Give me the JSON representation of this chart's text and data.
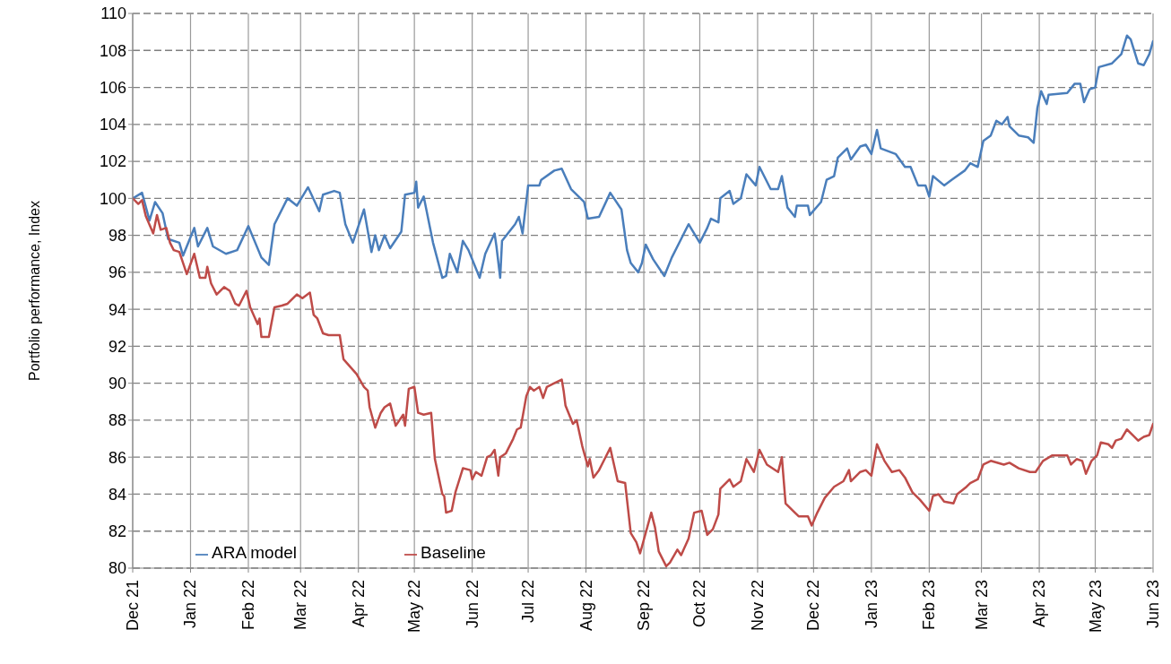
{
  "chart_data": {
    "type": "line",
    "ylabel": "Portfolio performance, Index",
    "ylim": [
      80,
      110
    ],
    "yticks": [
      80,
      82,
      84,
      86,
      88,
      90,
      92,
      94,
      96,
      98,
      100,
      102,
      104,
      106,
      108,
      110
    ],
    "xlim": [
      "2021-12-01",
      "2023-06-01"
    ],
    "xticks": [
      {
        "value": "2021-12-01",
        "label": "Dec 21"
      },
      {
        "value": "2022-01-01",
        "label": "Jan 22"
      },
      {
        "value": "2022-02-01",
        "label": "Feb 22"
      },
      {
        "value": "2022-03-01",
        "label": "Mar 22"
      },
      {
        "value": "2022-04-01",
        "label": "Apr 22"
      },
      {
        "value": "2022-05-01",
        "label": "May 22"
      },
      {
        "value": "2022-06-01",
        "label": "Jun 22"
      },
      {
        "value": "2022-07-01",
        "label": "Jul 22"
      },
      {
        "value": "2022-08-01",
        "label": "Aug 22"
      },
      {
        "value": "2022-09-01",
        "label": "Sep 22"
      },
      {
        "value": "2022-10-01",
        "label": "Oct 22"
      },
      {
        "value": "2022-11-01",
        "label": "Nov 22"
      },
      {
        "value": "2022-12-01",
        "label": "Dec 22"
      },
      {
        "value": "2023-01-01",
        "label": "Jan 23"
      },
      {
        "value": "2023-02-01",
        "label": "Feb 23"
      },
      {
        "value": "2023-03-01",
        "label": "Mar 23"
      },
      {
        "value": "2023-04-01",
        "label": "Apr 23"
      },
      {
        "value": "2023-05-01",
        "label": "May 23"
      },
      {
        "value": "2023-06-01",
        "label": "Jun 23"
      }
    ],
    "grid": true,
    "legend": "bottom left",
    "marker": "none",
    "line_style": "solid",
    "series": [
      {
        "name": "ARA model",
        "color": "#4a7ebb",
        "x": [
          "2021-12-01",
          "2021-12-06",
          "2021-12-10",
          "2021-12-13",
          "2021-12-17",
          "2021-12-20",
          "2021-12-26",
          "2021-12-28",
          "2022-01-03",
          "2022-01-05",
          "2022-01-10",
          "2022-01-13",
          "2022-01-20",
          "2022-01-26",
          "2022-02-01",
          "2022-02-08",
          "2022-02-12",
          "2022-02-15",
          "2022-02-22",
          "2022-02-27",
          "2022-03-05",
          "2022-03-11",
          "2022-03-13",
          "2022-03-19",
          "2022-03-22",
          "2022-03-25",
          "2022-03-29",
          "2022-03-31",
          "2022-04-04",
          "2022-04-08",
          "2022-04-10",
          "2022-04-12",
          "2022-04-15",
          "2022-04-18",
          "2022-04-24",
          "2022-04-26",
          "2022-05-01",
          "2022-05-02",
          "2022-05-03",
          "2022-05-06",
          "2022-05-11",
          "2022-05-16",
          "2022-05-18",
          "2022-05-20",
          "2022-05-24",
          "2022-05-27",
          "2022-05-30",
          "2022-06-05",
          "2022-06-08",
          "2022-06-13",
          "2022-06-14",
          "2022-06-16",
          "2022-06-17",
          "2022-06-24",
          "2022-06-26",
          "2022-06-28",
          "2022-07-01",
          "2022-07-07",
          "2022-07-08",
          "2022-07-15",
          "2022-07-19",
          "2022-07-24",
          "2022-07-31",
          "2022-08-02",
          "2022-08-08",
          "2022-08-14",
          "2022-08-20",
          "2022-08-23",
          "2022-08-25",
          "2022-08-29",
          "2022-08-31",
          "2022-09-02",
          "2022-09-06",
          "2022-09-12",
          "2022-09-16",
          "2022-09-21",
          "2022-09-25",
          "2022-10-01",
          "2022-10-05",
          "2022-10-07",
          "2022-10-11",
          "2022-10-12",
          "2022-10-17",
          "2022-10-19",
          "2022-10-23",
          "2022-10-26",
          "2022-10-31",
          "2022-11-02",
          "2022-11-08",
          "2022-11-12",
          "2022-11-14",
          "2022-11-17",
          "2022-11-21",
          "2022-11-22",
          "2022-11-28",
          "2022-11-29",
          "2022-12-05",
          "2022-12-08",
          "2022-12-12",
          "2022-12-14",
          "2022-12-19",
          "2022-12-21",
          "2022-12-26",
          "2022-12-29",
          "2023-01-01",
          "2023-01-04",
          "2023-01-06",
          "2023-01-14",
          "2023-01-19",
          "2023-01-22",
          "2023-01-26",
          "2023-01-30",
          "2023-02-01",
          "2023-02-03",
          "2023-02-09",
          "2023-02-13",
          "2023-02-20",
          "2023-02-23",
          "2023-02-27",
          "2023-03-02",
          "2023-03-06",
          "2023-03-09",
          "2023-03-12",
          "2023-03-15",
          "2023-03-16",
          "2023-03-21",
          "2023-03-26",
          "2023-03-29",
          "2023-03-31",
          "2023-04-02",
          "2023-04-05",
          "2023-04-06",
          "2023-04-16",
          "2023-04-20",
          "2023-04-23",
          "2023-04-25",
          "2023-04-28",
          "2023-05-01",
          "2023-05-03",
          "2023-05-10",
          "2023-05-15",
          "2023-05-18",
          "2023-05-20",
          "2023-05-24",
          "2023-05-27",
          "2023-05-30",
          "2023-06-01"
        ],
        "values": [
          100,
          100.3,
          98.8,
          99.8,
          99.2,
          97.8,
          97.6,
          96.9,
          98.4,
          97.4,
          98.4,
          97.4,
          97.0,
          97.2,
          98.5,
          96.8,
          96.4,
          98.6,
          100.0,
          99.6,
          100.6,
          99.3,
          100.2,
          100.4,
          100.3,
          98.6,
          97.6,
          98.2,
          99.4,
          97.1,
          98.0,
          97.2,
          98.0,
          97.3,
          98.2,
          100.2,
          100.3,
          100.9,
          99.5,
          100.1,
          97.6,
          95.7,
          95.8,
          97.0,
          96.0,
          97.7,
          97.2,
          95.7,
          97.0,
          98.1,
          97.4,
          95.7,
          97.7,
          98.6,
          99.0,
          98.1,
          100.7,
          100.7,
          101.0,
          101.5,
          101.6,
          100.5,
          99.8,
          98.9,
          99.0,
          100.3,
          99.4,
          97.2,
          96.5,
          96.0,
          96.5,
          97.5,
          96.7,
          95.8,
          96.8,
          97.8,
          98.6,
          97.6,
          98.4,
          98.9,
          98.7,
          100.0,
          100.4,
          99.7,
          100.0,
          101.3,
          100.7,
          101.7,
          100.5,
          100.5,
          101.2,
          99.5,
          99.0,
          99.6,
          99.6,
          99.1,
          99.8,
          101.0,
          101.2,
          102.2,
          102.7,
          102.1,
          102.8,
          102.9,
          102.4,
          103.7,
          102.7,
          102.4,
          101.7,
          101.7,
          100.7,
          100.7,
          100.1,
          101.2,
          100.7,
          101.0,
          101.5,
          101.9,
          101.7,
          103.1,
          103.4,
          104.2,
          104.0,
          104.4,
          103.9,
          103.4,
          103.3,
          103.0,
          104.9,
          105.8,
          105.1,
          105.6,
          105.7,
          106.2,
          106.2,
          105.2,
          105.9,
          106.0,
          107.1,
          107.3,
          107.8,
          108.8,
          108.6,
          107.3,
          107.2,
          107.8,
          108.5
        ]
      },
      {
        "name": "Baseline",
        "color": "#be4b48",
        "x": [
          "2021-12-01",
          "2021-12-04",
          "2021-12-06",
          "2021-12-08",
          "2021-12-12",
          "2021-12-14",
          "2021-12-16",
          "2021-12-19",
          "2021-12-21",
          "2021-12-23",
          "2021-12-26",
          "2021-12-30",
          "2022-01-03",
          "2022-01-06",
          "2022-01-09",
          "2022-01-10",
          "2022-01-12",
          "2022-01-15",
          "2022-01-19",
          "2022-01-22",
          "2022-01-25",
          "2022-01-27",
          "2022-01-31",
          "2022-02-02",
          "2022-02-06",
          "2022-02-07",
          "2022-02-08",
          "2022-02-12",
          "2022-02-15",
          "2022-02-19",
          "2022-02-22",
          "2022-02-27",
          "2022-03-02",
          "2022-03-06",
          "2022-03-08",
          "2022-03-10",
          "2022-03-13",
          "2022-03-16",
          "2022-03-22",
          "2022-03-24",
          "2022-03-31",
          "2022-04-04",
          "2022-04-06",
          "2022-04-07",
          "2022-04-10",
          "2022-04-13",
          "2022-04-15",
          "2022-04-18",
          "2022-04-21",
          "2022-04-25",
          "2022-04-26",
          "2022-04-28",
          "2022-05-01",
          "2022-05-03",
          "2022-05-06",
          "2022-05-10",
          "2022-05-12",
          "2022-05-16",
          "2022-05-17",
          "2022-05-18",
          "2022-05-21",
          "2022-05-23",
          "2022-05-27",
          "2022-05-31",
          "2022-06-01",
          "2022-06-03",
          "2022-06-06",
          "2022-06-09",
          "2022-06-11",
          "2022-06-13",
          "2022-06-15",
          "2022-06-16",
          "2022-06-19",
          "2022-06-23",
          "2022-06-25",
          "2022-06-27",
          "2022-06-30",
          "2022-07-02",
          "2022-07-04",
          "2022-07-07",
          "2022-07-09",
          "2022-07-11",
          "2022-07-15",
          "2022-07-19",
          "2022-07-20",
          "2022-07-21",
          "2022-07-25",
          "2022-07-27",
          "2022-07-30",
          "2022-08-02",
          "2022-08-03",
          "2022-08-05",
          "2022-08-08",
          "2022-08-11",
          "2022-08-14",
          "2022-08-18",
          "2022-08-22",
          "2022-08-25",
          "2022-08-28",
          "2022-08-30",
          "2022-09-05",
          "2022-09-07",
          "2022-09-09",
          "2022-09-13",
          "2022-09-15",
          "2022-09-19",
          "2022-09-21",
          "2022-09-25",
          "2022-09-28",
          "2022-10-02",
          "2022-10-05",
          "2022-10-08",
          "2022-10-11",
          "2022-10-12",
          "2022-10-17",
          "2022-10-19",
          "2022-10-23",
          "2022-10-26",
          "2022-10-30",
          "2022-11-02",
          "2022-11-06",
          "2022-11-12",
          "2022-11-14",
          "2022-11-16",
          "2022-11-21",
          "2022-11-23",
          "2022-11-28",
          "2022-11-30",
          "2022-12-03",
          "2022-12-07",
          "2022-12-12",
          "2022-12-17",
          "2022-12-20",
          "2022-12-21",
          "2022-12-26",
          "2022-12-29",
          "2023-01-01",
          "2023-01-04",
          "2023-01-08",
          "2023-01-12",
          "2023-01-16",
          "2023-01-19",
          "2023-01-23",
          "2023-01-27",
          "2023-02-01",
          "2023-02-03",
          "2023-02-06",
          "2023-02-09",
          "2023-02-14",
          "2023-02-16",
          "2023-02-21",
          "2023-02-23",
          "2023-02-27",
          "2023-03-02",
          "2023-03-06",
          "2023-03-13",
          "2023-03-16",
          "2023-03-21",
          "2023-03-27",
          "2023-03-30",
          "2023-04-03",
          "2023-04-08",
          "2023-04-16",
          "2023-04-18",
          "2023-04-21",
          "2023-04-24",
          "2023-04-26",
          "2023-04-29",
          "2023-05-02",
          "2023-05-04",
          "2023-05-08",
          "2023-05-10",
          "2023-05-12",
          "2023-05-15",
          "2023-05-18",
          "2023-05-21",
          "2023-05-24",
          "2023-05-27",
          "2023-05-30",
          "2023-05-31",
          "2023-06-01"
        ],
        "values": [
          100,
          99.7,
          99.9,
          99.05,
          98.1,
          99.1,
          98.3,
          98.4,
          97.6,
          97.2,
          97.1,
          95.9,
          97.0,
          95.7,
          95.7,
          96.3,
          95.4,
          94.8,
          95.2,
          95.0,
          94.3,
          94.2,
          95.0,
          94.1,
          93.2,
          93.5,
          92.5,
          92.5,
          94.1,
          94.2,
          94.3,
          94.8,
          94.6,
          94.9,
          93.7,
          93.5,
          92.7,
          92.6,
          92.6,
          91.3,
          90.5,
          89.8,
          89.6,
          88.7,
          87.6,
          88.4,
          88.7,
          88.9,
          87.7,
          88.3,
          87.7,
          89.7,
          89.8,
          88.4,
          88.3,
          88.4,
          85.9,
          84.0,
          83.9,
          83.0,
          83.1,
          84.1,
          85.4,
          85.3,
          84.8,
          85.2,
          85.0,
          86.0,
          86.1,
          86.4,
          85.0,
          86.0,
          86.2,
          87.0,
          87.5,
          87.6,
          89.3,
          89.8,
          89.6,
          89.8,
          89.2,
          89.8,
          90.0,
          90.2,
          89.6,
          88.8,
          87.8,
          88.0,
          86.6,
          85.5,
          85.9,
          84.9,
          85.3,
          85.9,
          86.5,
          84.7,
          84.6,
          81.9,
          81.4,
          80.8,
          83.0,
          82.2,
          80.9,
          80.1,
          80.3,
          81.0,
          80.7,
          81.6,
          83.0,
          83.1,
          81.8,
          82.1,
          82.9,
          84.3,
          84.8,
          84.4,
          84.7,
          85.9,
          85.2,
          86.4,
          85.6,
          85.2,
          86.0,
          83.5,
          83.0,
          82.8,
          82.8,
          82.3,
          83.0,
          83.8,
          84.4,
          84.7,
          85.3,
          84.7,
          85.2,
          85.3,
          85.0,
          86.7,
          85.8,
          85.2,
          85.3,
          84.9,
          84.1,
          83.7,
          83.1,
          83.9,
          84.0,
          83.6,
          83.5,
          84.0,
          84.4,
          84.6,
          84.8,
          85.6,
          85.8,
          85.6,
          85.7,
          85.4,
          85.2,
          85.2,
          85.8,
          86.1,
          86.1,
          85.6,
          85.9,
          85.8,
          85.1,
          85.8,
          86.1,
          86.8,
          86.7,
          86.5,
          86.9,
          87.0,
          87.5,
          87.2,
          86.9,
          87.1,
          87.2,
          87.5,
          87.8
        ]
      }
    ]
  }
}
